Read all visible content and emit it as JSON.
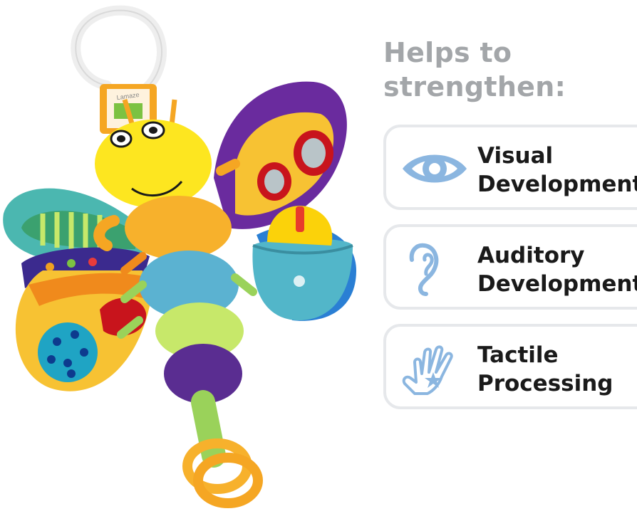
{
  "headline": {
    "line1": "Helps to",
    "line2": "strengthen:"
  },
  "benefits": [
    {
      "icon": "eye-icon",
      "line1": "Visual",
      "line2": "Development"
    },
    {
      "icon": "ear-icon",
      "line1": "Auditory",
      "line2": "Development"
    },
    {
      "icon": "hand-icon",
      "line1": "Tactile",
      "line2": "Processing"
    }
  ],
  "toy": {
    "brand_tag": "Lamaze"
  },
  "colors": {
    "headline": "#a3a6a9",
    "card_border": "#e6e8eb",
    "icon": "#8bb6e0",
    "label": "#1a1a1a"
  }
}
